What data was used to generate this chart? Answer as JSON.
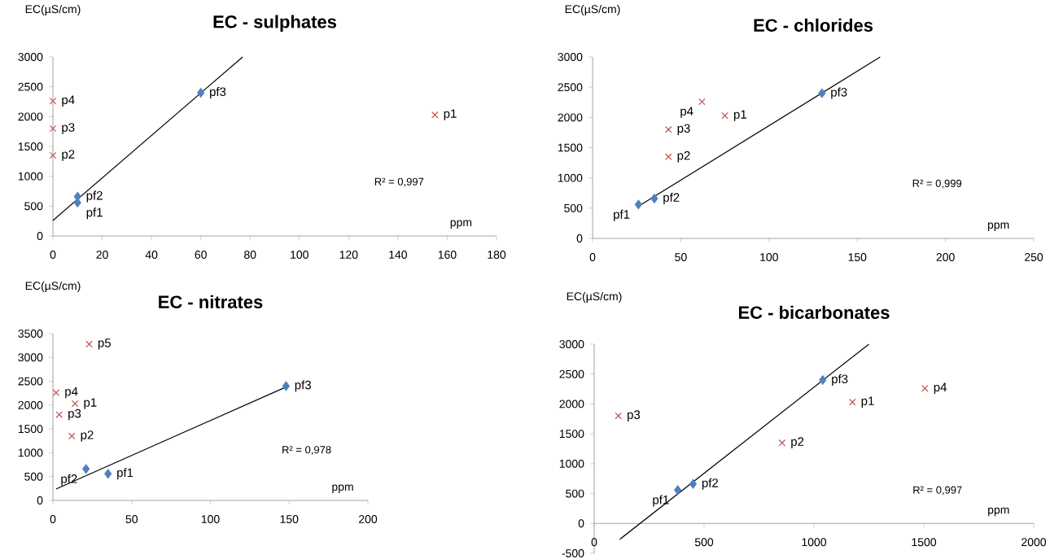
{
  "chart_data": [
    {
      "type": "scatter",
      "title": "EC - sulphates",
      "xlabel": "ppm",
      "ylabel": "EC(µS/cm)",
      "xlim": [
        0,
        180
      ],
      "xticks": [
        0,
        20,
        40,
        60,
        80,
        100,
        120,
        140,
        160,
        180
      ],
      "ylim": [
        0,
        3000
      ],
      "yticks": [
        0,
        500,
        1000,
        1500,
        2000,
        2500,
        3000
      ],
      "series": [
        {
          "color": "#4f81bd",
          "marker": "diamond",
          "x": [
            10,
            10,
            60
          ],
          "values": [
            560,
            660,
            2400
          ]
        },
        {
          "color": "#c0504d",
          "marker": "cross",
          "x": [
            155,
            0,
            0,
            0
          ],
          "values": [
            2030,
            1350,
            1800,
            2260
          ]
        },
        {
          "type": "line",
          "color": "#000000",
          "marker": "none",
          "x": [
            0,
            77
          ],
          "values": [
            260,
            3000
          ]
        }
      ],
      "annotations": [
        {
          "text": "pf1",
          "x": 10,
          "y": 560
        },
        {
          "text": "pf2",
          "x": 10,
          "y": 660
        },
        {
          "text": "pf3",
          "x": 60,
          "y": 2400
        },
        {
          "text": "p1",
          "x": 155,
          "y": 2030
        },
        {
          "text": "p2",
          "x": 0,
          "y": 1350
        },
        {
          "text": "p3",
          "x": 0,
          "y": 1800
        },
        {
          "text": "p4",
          "x": 0,
          "y": 2260
        },
        "R² = 0,997"
      ]
    },
    {
      "type": "scatter",
      "title": "EC - chlorides",
      "xlabel": "ppm",
      "ylabel": "EC(µS/cm)",
      "xlim": [
        0,
        250
      ],
      "xticks": [
        0,
        50,
        100,
        150,
        200,
        250
      ],
      "ylim": [
        0,
        3000
      ],
      "yticks": [
        0,
        500,
        1000,
        1500,
        2000,
        2500,
        3000
      ],
      "series": [
        {
          "color": "#4f81bd",
          "marker": "diamond",
          "x": [
            26,
            35,
            130
          ],
          "values": [
            560,
            660,
            2400
          ]
        },
        {
          "color": "#c0504d",
          "marker": "cross",
          "x": [
            75,
            43,
            43,
            62
          ],
          "values": [
            2030,
            1350,
            1800,
            2260
          ]
        },
        {
          "type": "line",
          "color": "#000000",
          "marker": "none",
          "x": [
            26,
            163
          ],
          "values": [
            530,
            3000
          ]
        }
      ],
      "annotations": [
        {
          "text": "pf1",
          "x": 26,
          "y": 560
        },
        {
          "text": "pf2",
          "x": 35,
          "y": 660
        },
        {
          "text": "pf3",
          "x": 130,
          "y": 2400
        },
        {
          "text": "p1",
          "x": 75,
          "y": 2030
        },
        {
          "text": "p2",
          "x": 43,
          "y": 1350
        },
        {
          "text": "p3",
          "x": 43,
          "y": 1800
        },
        {
          "text": "p4",
          "x": 62,
          "y": 2260
        },
        "R² = 0,999"
      ]
    },
    {
      "type": "scatter",
      "title": "EC - nitrates",
      "xlabel": "ppm",
      "ylabel": "EC(µS/cm)",
      "xlim": [
        0,
        200
      ],
      "xticks": [
        0,
        50,
        100,
        150,
        200
      ],
      "ylim": [
        0,
        3500
      ],
      "yticks": [
        0,
        500,
        1000,
        1500,
        2000,
        2500,
        3000,
        3500
      ],
      "series": [
        {
          "color": "#4f81bd",
          "marker": "diamond",
          "x": [
            35,
            21,
            148
          ],
          "values": [
            560,
            660,
            2400
          ]
        },
        {
          "color": "#c0504d",
          "marker": "cross",
          "x": [
            14,
            12,
            4,
            2,
            23
          ],
          "values": [
            2030,
            1350,
            1800,
            2260,
            3280
          ]
        },
        {
          "type": "line",
          "color": "#000000",
          "marker": "none",
          "x": [
            2,
            148
          ],
          "values": [
            240,
            2380
          ]
        }
      ],
      "annotations": [
        {
          "text": "pf1",
          "x": 35,
          "y": 560
        },
        {
          "text": "pf2",
          "x": 21,
          "y": 660
        },
        {
          "text": "pf3",
          "x": 148,
          "y": 2400
        },
        {
          "text": "p1",
          "x": 14,
          "y": 2030
        },
        {
          "text": "p2",
          "x": 12,
          "y": 1350
        },
        {
          "text": "p3",
          "x": 4,
          "y": 1800
        },
        {
          "text": "p4",
          "x": 2,
          "y": 2260
        },
        {
          "text": "p5",
          "x": 23,
          "y": 3280
        },
        "R² = 0,978"
      ]
    },
    {
      "type": "scatter",
      "title": "EC - bicarbonates",
      "xlabel": "ppm",
      "ylabel": "EC(µS/cm)",
      "xlim": [
        0,
        2000
      ],
      "xticks": [
        0,
        500,
        1000,
        1500,
        2000
      ],
      "ylim": [
        -500,
        3000
      ],
      "yticks": [
        -500,
        0,
        500,
        1000,
        1500,
        2000,
        2500,
        3000
      ],
      "series": [
        {
          "color": "#4f81bd",
          "marker": "diamond",
          "x": [
            380,
            450,
            1040
          ],
          "values": [
            560,
            660,
            2400
          ]
        },
        {
          "color": "#c0504d",
          "marker": "cross",
          "x": [
            1175,
            855,
            110,
            1505
          ],
          "values": [
            2030,
            1350,
            1800,
            2260
          ]
        },
        {
          "type": "line",
          "color": "#000000",
          "marker": "none",
          "x": [
            115,
            1250
          ],
          "values": [
            -270,
            3000
          ]
        }
      ],
      "annotations": [
        {
          "text": "pf1",
          "x": 380,
          "y": 560
        },
        {
          "text": "pf2",
          "x": 450,
          "y": 660
        },
        {
          "text": "pf3",
          "x": 1040,
          "y": 2400
        },
        {
          "text": "p1",
          "x": 1175,
          "y": 2030
        },
        {
          "text": "p2",
          "x": 855,
          "y": 1350
        },
        {
          "text": "p3",
          "x": 110,
          "y": 1800
        },
        {
          "text": "p4",
          "x": 1505,
          "y": 2260
        },
        "R² = 0,997"
      ]
    }
  ]
}
